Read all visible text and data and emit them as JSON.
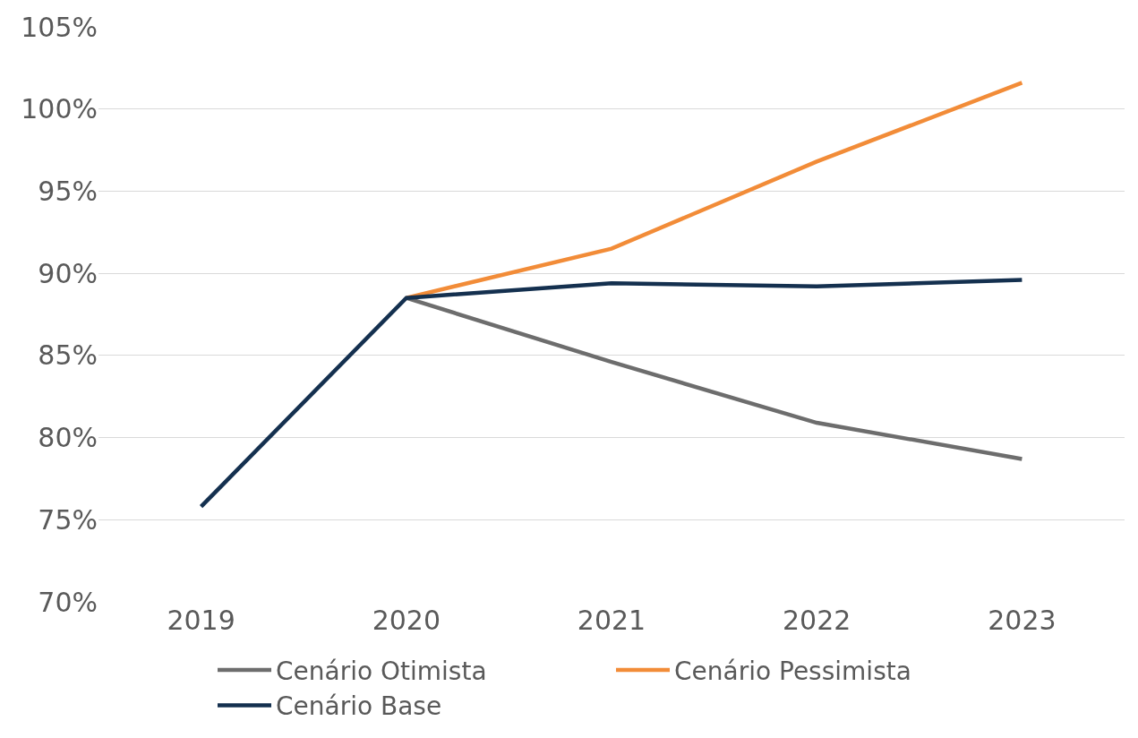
{
  "chart_data": {
    "type": "line",
    "categories": [
      "2019",
      "2020",
      "2021",
      "2022",
      "2023"
    ],
    "series": [
      {
        "name": "Cenário Otimista",
        "color": "#6d6d6d",
        "values": [
          null,
          88.5,
          84.6,
          80.9,
          78.7
        ]
      },
      {
        "name": "Cenário Pessimista",
        "color": "#f28c38",
        "values": [
          null,
          88.5,
          91.5,
          96.8,
          101.6
        ]
      },
      {
        "name": "Cenário Base",
        "color": "#14304f",
        "values": [
          75.8,
          88.5,
          89.4,
          89.2,
          89.6
        ]
      }
    ],
    "ylim": [
      70,
      105
    ],
    "yticks": [
      {
        "value": 70,
        "label": "70%"
      },
      {
        "value": 75,
        "label": "75%"
      },
      {
        "value": 80,
        "label": "80%"
      },
      {
        "value": 85,
        "label": "85%"
      },
      {
        "value": 90,
        "label": "90%"
      },
      {
        "value": 95,
        "label": "95%"
      },
      {
        "value": 100,
        "label": "100%"
      },
      {
        "value": 105,
        "label": "105%"
      }
    ],
    "grid": "y",
    "legend": "bottom",
    "marker": "none",
    "line_style": "solid"
  }
}
